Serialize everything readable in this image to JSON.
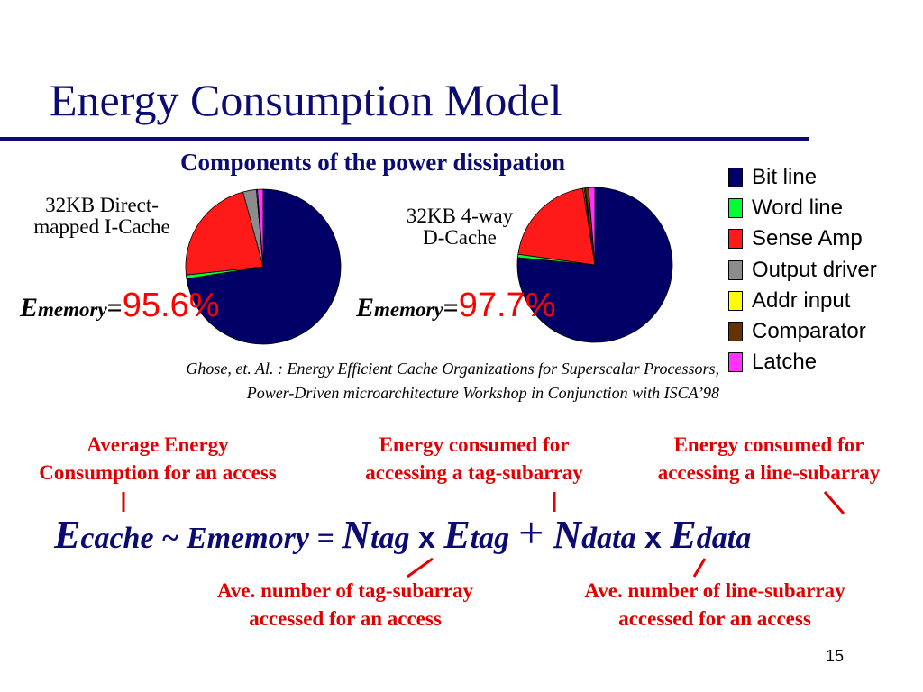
{
  "slide": {
    "title": "Energy Consumption Model",
    "subtitle": "Components of the power dissipation",
    "page_number": "15"
  },
  "caches": [
    {
      "label_line1": "32KB Direct-",
      "label_line2": "mapped I-Cache",
      "ememory_E": "E",
      "ememory_sub": "memory",
      "ememory_eq": "=",
      "ememory_value": "95.6%"
    },
    {
      "label_line1": "32KB 4-way",
      "label_line2": "D-Cache",
      "ememory_E": "E",
      "ememory_sub": "memory",
      "ememory_eq": "=",
      "ememory_value": "97.7%"
    }
  ],
  "legend": [
    {
      "label": "Bit line",
      "color": "#000066"
    },
    {
      "label": "Word line",
      "color": "#00ff33"
    },
    {
      "label": "Sense Amp",
      "color": "#ff1a1a"
    },
    {
      "label": "Output driver",
      "color": "#8c8c8c"
    },
    {
      "label": "Addr input",
      "color": "#ffff00"
    },
    {
      "label": "Comparator",
      "color": "#663300"
    },
    {
      "label": "Latche",
      "color": "#ff33ff"
    }
  ],
  "chart_data": [
    {
      "type": "pie",
      "categories": [
        "Bit line",
        "Word line",
        "Sense Amp",
        "Output driver",
        "Addr input",
        "Comparator",
        "Latche"
      ],
      "values": [
        72.5,
        0.8,
        22.5,
        2.8,
        0.2,
        0,
        1.2
      ]
    },
    {
      "type": "pie",
      "categories": [
        "Bit line",
        "Word line",
        "Sense Amp",
        "Output driver",
        "Addr input",
        "Comparator",
        "Latche"
      ],
      "values": [
        76.5,
        0.7,
        20.3,
        0.3,
        0.2,
        0.7,
        1.3
      ]
    }
  ],
  "citation": {
    "line1": "Ghose, et. Al. : Energy Efficient Cache Organizations for Superscalar Processors,",
    "line2": "Power-Driven microarchitecture Workshop in Conjunction with ISCA’98"
  },
  "annotations": {
    "avg_energy_line1": "Average Energy",
    "avg_energy_line2": "Consumption for an access",
    "tag_energy_line1": "Energy consumed for",
    "tag_energy_line2": "accessing a tag-subarray",
    "line_energy_line1": "Energy consumed for",
    "line_energy_line2": "accessing a line-subarray",
    "ntag_line1": "Ave. number of tag-subarray",
    "ntag_line2": "accessed for an access",
    "ndata_line1": "Ave. number of line-subarray",
    "ndata_line2": "accessed for an access"
  },
  "formula": {
    "e": "E",
    "cache": "cache",
    "tilde": " ~ ",
    "ememory": "Ememory",
    "equals": " = ",
    "n1": "N",
    "tag1": "tag",
    "times1": " x ",
    "e2": "E",
    "tag2": "tag",
    "plus": "+",
    "n2": "N",
    "data1": "data",
    "times2": " x ",
    "e3": "E",
    "data2": "data"
  }
}
